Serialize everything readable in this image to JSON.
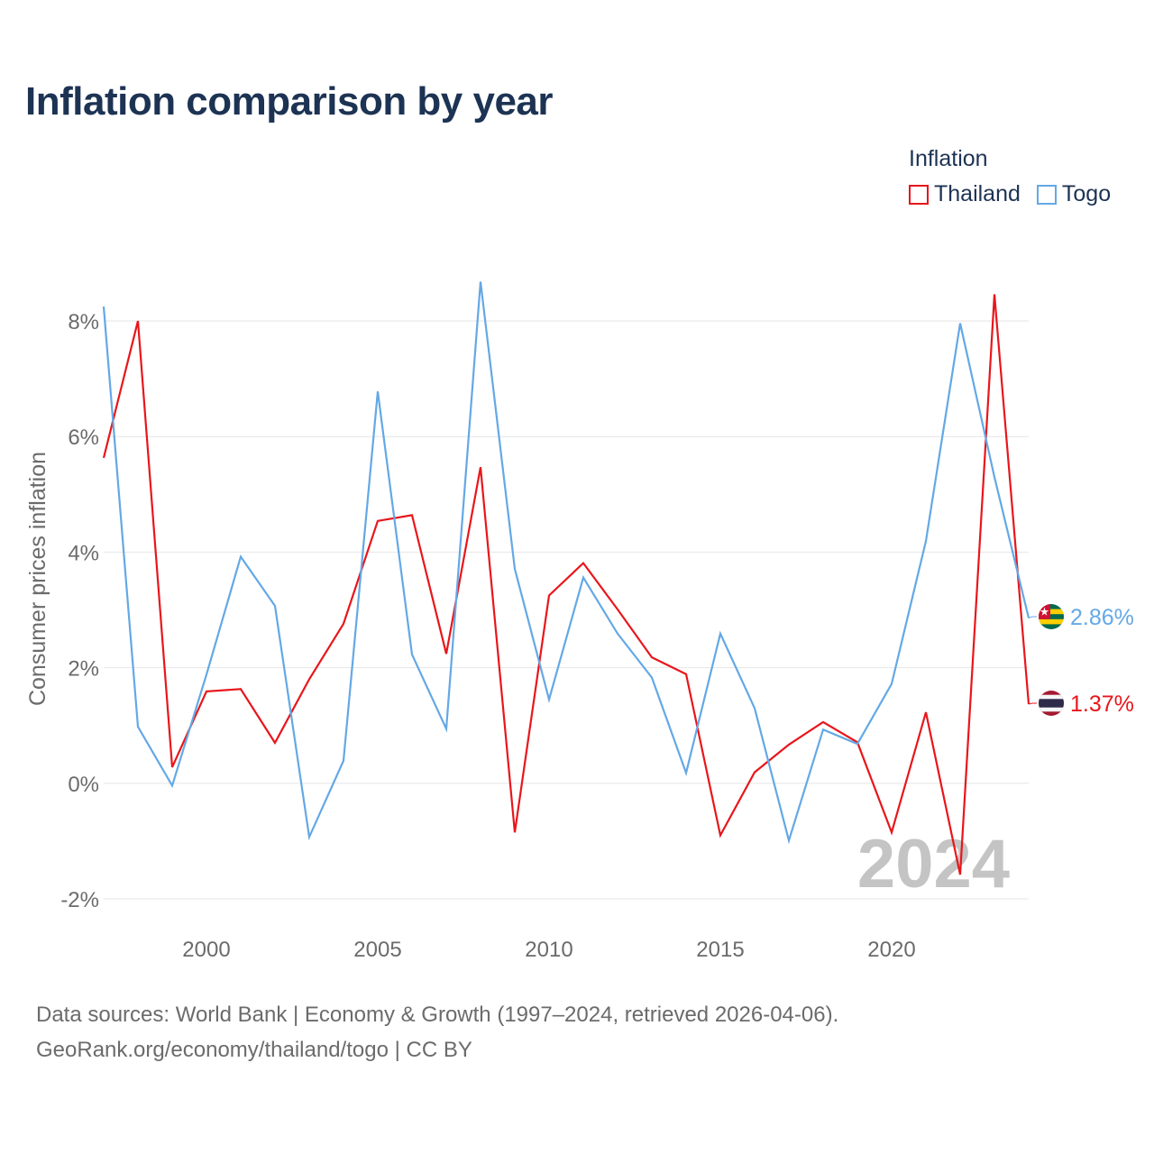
{
  "title": "Inflation comparison by year",
  "legend": {
    "title": "Inflation",
    "items": [
      {
        "label": "Thailand",
        "color": "#e8161b"
      },
      {
        "label": "Togo",
        "color": "#64a8e5"
      }
    ]
  },
  "source": {
    "line1": "Data sources: World Bank | Economy & Growth (1997–2024, retrieved 2026-04-06).",
    "line2": "GeoRank.org/economy/thailand/togo | CC BY"
  },
  "chart_data": {
    "type": "line",
    "title": "Inflation comparison by year",
    "xlabel": "",
    "ylabel": "Consumer prices inflation",
    "xlim": [
      1997,
      2024
    ],
    "ylim": [
      -2,
      8
    ],
    "x_ticks": [
      2000,
      2005,
      2010,
      2015,
      2020
    ],
    "y_ticks": [
      -2,
      0,
      2,
      4,
      6,
      8
    ],
    "y_tick_labels": [
      "-2%",
      "0%",
      "2%",
      "4%",
      "6%",
      "8%"
    ],
    "grid": true,
    "legend_position": "top-right",
    "watermark": "2024",
    "x": [
      1997,
      1998,
      1999,
      2000,
      2001,
      2002,
      2003,
      2004,
      2005,
      2006,
      2007,
      2008,
      2009,
      2010,
      2011,
      2012,
      2013,
      2014,
      2015,
      2016,
      2017,
      2018,
      2019,
      2020,
      2021,
      2022,
      2023,
      2024
    ],
    "series": [
      {
        "name": "Thailand",
        "color": "#e8161b",
        "end_label": "1.37%",
        "flag": "thailand-flag-icon",
        "values": [
          5.63,
          8.0,
          0.28,
          1.59,
          1.63,
          0.7,
          1.8,
          2.76,
          4.54,
          4.64,
          2.24,
          5.47,
          -0.85,
          3.25,
          3.81,
          3.01,
          2.18,
          1.89,
          -0.9,
          0.19,
          0.67,
          1.06,
          0.71,
          -0.85,
          1.23,
          -1.58,
          8.46,
          1.37
        ]
      },
      {
        "name": "Togo",
        "color": "#64a8e5",
        "end_label": "2.86%",
        "flag": "togo-flag-icon",
        "values": [
          8.25,
          0.98,
          -0.04,
          1.88,
          3.92,
          3.07,
          -0.93,
          0.39,
          6.78,
          2.23,
          0.94,
          8.68,
          3.71,
          1.45,
          3.56,
          2.59,
          1.83,
          0.18,
          2.59,
          1.3,
          -0.99,
          0.93,
          0.68,
          1.72,
          4.19,
          7.96,
          5.3,
          2.86
        ]
      }
    ]
  }
}
